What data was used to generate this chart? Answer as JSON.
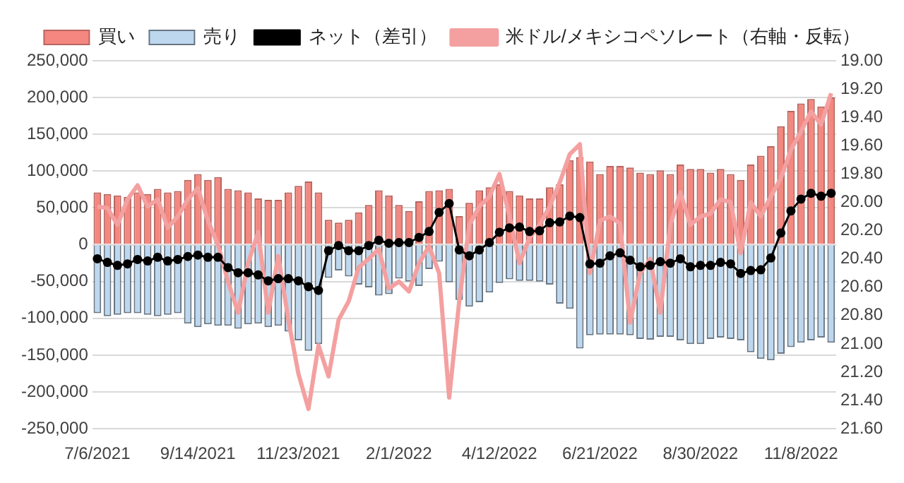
{
  "chart_data": {
    "type": "bar",
    "stacked": true,
    "legend": "top",
    "grid": "y",
    "categories": [
      "7/6/2021",
      null,
      null,
      null,
      null,
      null,
      null,
      null,
      null,
      null,
      "9/14/2021",
      null,
      null,
      null,
      null,
      null,
      null,
      null,
      null,
      null,
      "11/23/2021",
      null,
      null,
      null,
      null,
      null,
      null,
      null,
      null,
      null,
      "2/1/2022",
      null,
      null,
      null,
      null,
      null,
      null,
      null,
      null,
      null,
      "4/12/2022",
      null,
      null,
      null,
      null,
      null,
      null,
      null,
      null,
      null,
      "6/21/2022",
      null,
      null,
      null,
      null,
      null,
      null,
      null,
      null,
      null,
      "8/30/2022",
      null,
      null,
      null,
      null,
      null,
      null,
      null,
      null,
      null,
      "11/8/2022",
      null,
      null,
      null
    ],
    "ylim": [
      -250000,
      250000
    ],
    "yticks": [
      {
        "value": -250000,
        "label": "-250,000"
      },
      {
        "value": -200000,
        "label": "-200,000"
      },
      {
        "value": -150000,
        "label": "-150,000"
      },
      {
        "value": -100000,
        "label": "-100,000"
      },
      {
        "value": -50000,
        "label": "-50,000"
      },
      0,
      {
        "value": 50000,
        "label": "50,000"
      },
      {
        "value": 100000,
        "label": "100,000"
      },
      {
        "value": 150000,
        "label": "150,000"
      },
      {
        "value": 200000,
        "label": "200,000"
      },
      {
        "value": 250000,
        "label": "250,000"
      }
    ],
    "y2lim": [
      21.6,
      19.0
    ],
    "y2ticks": [
      {
        "value": 19.0,
        "label": "19.00"
      },
      {
        "value": 19.2,
        "label": "19.20"
      },
      {
        "value": 19.4,
        "label": "19.40"
      },
      {
        "value": 19.6,
        "label": "19.60"
      },
      {
        "value": 19.8,
        "label": "19.80"
      },
      {
        "value": 20.0,
        "label": "20.00"
      },
      {
        "value": 20.2,
        "label": "20.20"
      },
      {
        "value": 20.4,
        "label": "20.40"
      },
      {
        "value": 20.6,
        "label": "20.60"
      },
      {
        "value": 20.8,
        "label": "20.80"
      },
      {
        "value": 21.0,
        "label": "21.00"
      },
      {
        "value": 21.2,
        "label": "21.20"
      },
      {
        "value": 21.4,
        "label": "21.40"
      },
      {
        "value": 21.6,
        "label": "21.60"
      }
    ],
    "series": [
      {
        "name": "買い",
        "color": "#f4877f",
        "values": [
          71000,
          69000,
          67000,
          65000,
          71000,
          69000,
          76000,
          71000,
          73000,
          88000,
          96000,
          88000,
          92000,
          76000,
          74000,
          71000,
          63000,
          61000,
          61000,
          71000,
          80000,
          86000,
          71000,
          34000,
          30000,
          34000,
          44000,
          54000,
          74000,
          67000,
          54000,
          46000,
          59000,
          73000,
          74000,
          76000,
          39000,
          57000,
          74000,
          78000,
          82000,
          73000,
          67000,
          63000,
          63000,
          78000,
          82000,
          115000,
          119000,
          113000,
          96000,
          107000,
          107000,
          105000,
          98000,
          96000,
          101000,
          96000,
          109000,
          103000,
          103000,
          98000,
          103000,
          96000,
          88000,
          109000,
          121000,
          134000,
          161000,
          182000,
          192000,
          198000,
          188000,
          200000
        ]
      },
      {
        "name": "売り",
        "color": "#bdd7ee",
        "values": [
          -93000,
          -97000,
          -95000,
          -93000,
          -93000,
          -95000,
          -97000,
          -95000,
          -93000,
          -107000,
          -112000,
          -108000,
          -110000,
          -110000,
          -114000,
          -108000,
          -107000,
          -112000,
          -110000,
          -118000,
          -130000,
          -144000,
          -135000,
          -45000,
          -35000,
          -43000,
          -54000,
          -58000,
          -69000,
          -67000,
          -46000,
          -50000,
          -56000,
          -33000,
          -23000,
          -51000,
          -75000,
          -84000,
          -78000,
          -65000,
          -52000,
          -47000,
          -49000,
          -49000,
          -50000,
          -54000,
          -80000,
          -87000,
          -141000,
          -123000,
          -122000,
          -122000,
          -122000,
          -123000,
          -128000,
          -129000,
          -125000,
          -125000,
          -130000,
          -135000,
          -135000,
          -128000,
          -126000,
          -128000,
          -130000,
          -146000,
          -155000,
          -157000,
          -148000,
          -139000,
          -133000,
          -130000,
          -126000,
          -133000
        ]
      },
      {
        "name": "ネット（差引）",
        "type": "line",
        "color": "#000000",
        "marker": "circle",
        "values": [
          -19000,
          -24000,
          -28000,
          -26000,
          -20000,
          -22000,
          -17000,
          -22000,
          -20000,
          -16000,
          -14000,
          -17000,
          -17000,
          -31000,
          -38000,
          -38000,
          -41000,
          -49000,
          -46000,
          -46000,
          -49000,
          -57000,
          -62000,
          -8000,
          -1000,
          -8000,
          -8000,
          -1000,
          6000,
          2000,
          3000,
          3000,
          10000,
          18000,
          44000,
          56000,
          -7000,
          -15000,
          -7000,
          3000,
          17000,
          23000,
          24000,
          18000,
          19000,
          30000,
          31000,
          39000,
          37000,
          -26000,
          -25000,
          -15000,
          -11000,
          -21000,
          -30000,
          -28000,
          -23000,
          -25000,
          -19000,
          -30000,
          -28000,
          -28000,
          -24000,
          -26000,
          -39000,
          -35000,
          -34000,
          -18000,
          16000,
          46000,
          62000,
          70000,
          66000,
          70000
        ]
      },
      {
        "name": "米ドル/メキシコペソレート（右軸・反転）",
        "type": "line",
        "axis": "y2",
        "color": "#f4a0a0",
        "marker": "none",
        "values": [
          20.03,
          20.04,
          20.16,
          19.98,
          19.88,
          20.03,
          19.98,
          20.18,
          20.1,
          19.98,
          19.9,
          20.13,
          20.3,
          20.56,
          20.78,
          20.43,
          20.21,
          20.78,
          20.38,
          20.83,
          21.21,
          21.46,
          21.01,
          21.23,
          20.83,
          20.7,
          20.46,
          20.4,
          20.33,
          20.61,
          20.56,
          20.63,
          20.43,
          20.31,
          20.5,
          21.38,
          20.7,
          20.16,
          20.03,
          19.96,
          19.8,
          20.1,
          20.43,
          20.25,
          20.16,
          20.03,
          19.86,
          19.66,
          19.59,
          20.5,
          20.13,
          20.1,
          20.15,
          20.85,
          20.5,
          20.4,
          20.78,
          20.16,
          19.93,
          20.16,
          20.1,
          20.08,
          19.98,
          20.0,
          20.36,
          20.0,
          20.1,
          19.96,
          19.83,
          19.63,
          19.5,
          19.36,
          19.45,
          19.23
        ]
      }
    ]
  }
}
